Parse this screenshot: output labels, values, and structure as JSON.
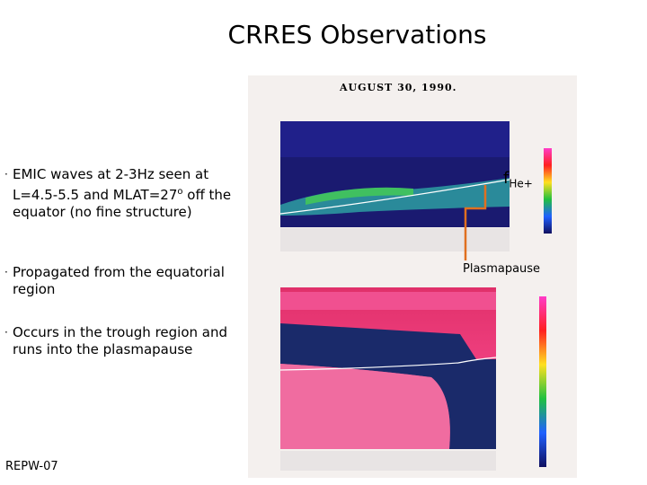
{
  "header": {
    "title": "CRRES Observations"
  },
  "bullets": [
    {
      "before": "EMIC waves at 2-3Hz seen at L=4.5-5.5 and MLAT=27",
      "sup": "o",
      "after": " off the equator (no fine structure)"
    },
    {
      "before": "Propagated from the equatorial region"
    },
    {
      "before": "Occurs in the trough region and runs into the plasmapause"
    }
  ],
  "figure": {
    "date": "AUGUST 30, 1990.",
    "line_label": {
      "base": "f",
      "sub": "He+"
    },
    "plasmapause_label": "Plasmapause"
  },
  "footer": {
    "text": "REPW-07"
  }
}
